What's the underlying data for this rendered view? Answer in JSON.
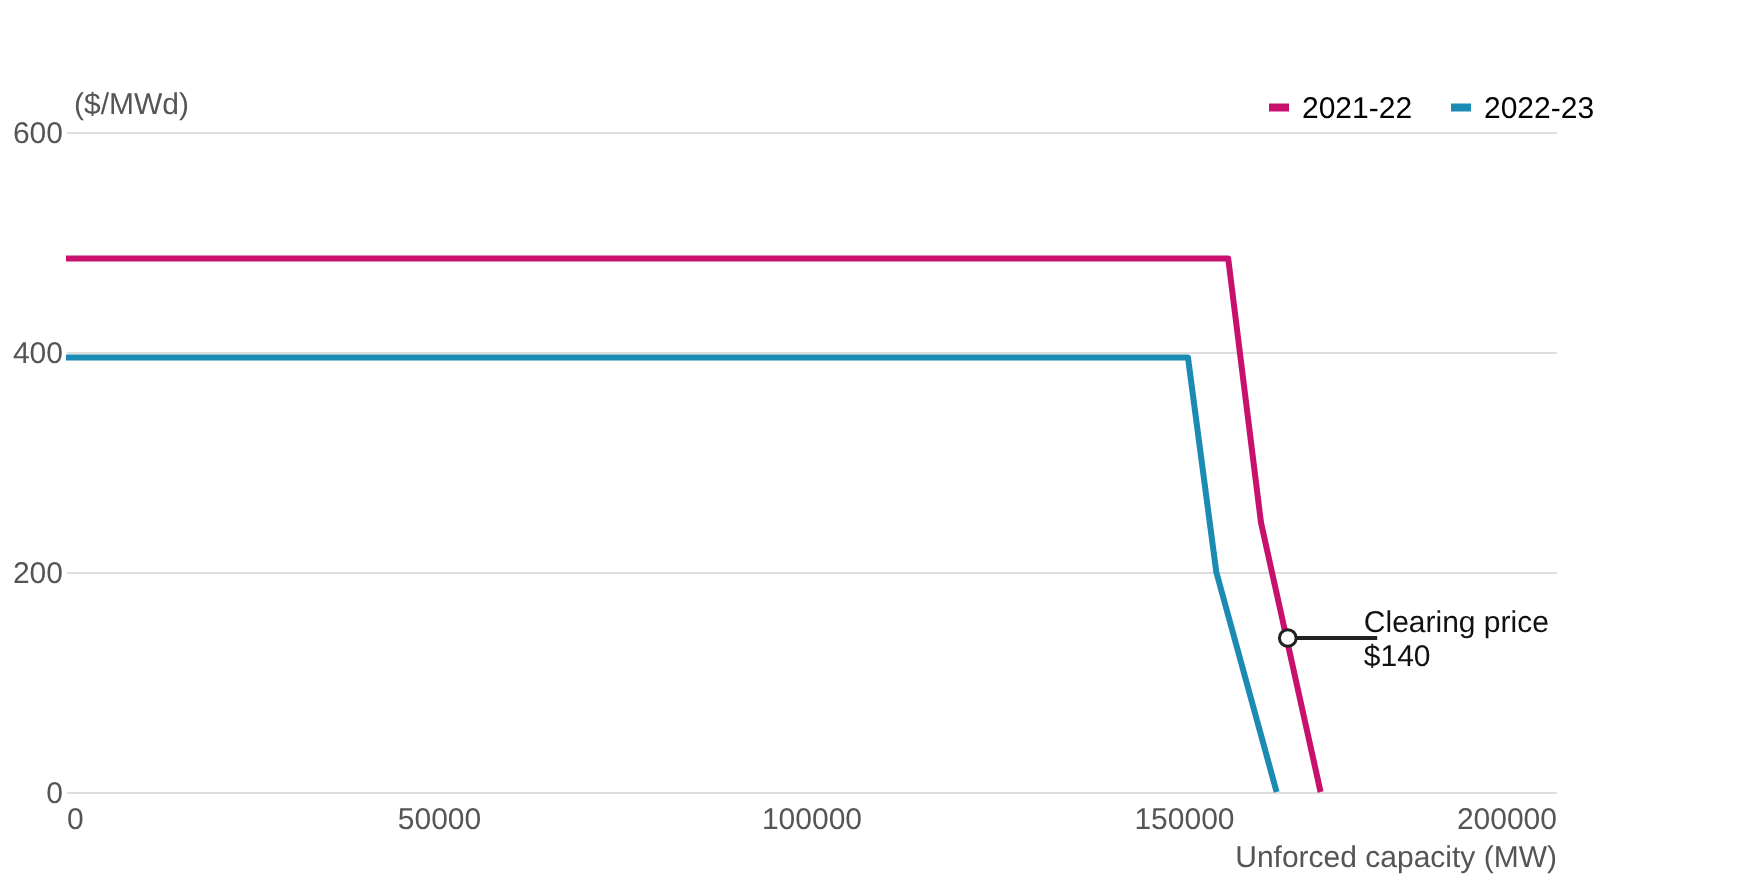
{
  "chart_data": {
    "type": "line",
    "ylabel": "($/MWd)",
    "xlabel": "Unforced capacity (MW)",
    "series": [
      {
        "name": "2021-22",
        "color": "#c8106e",
        "x": [
          0,
          156000,
          160400,
          168400
        ],
        "values": [
          485,
          485,
          245,
          0
        ]
      },
      {
        "name": "2022-23",
        "color": "#1b8bb4",
        "x": [
          0,
          150600,
          154400,
          162500
        ],
        "values": [
          395,
          395,
          200,
          0
        ]
      }
    ],
    "xlim": [
      0,
      200000
    ],
    "xticks": [
      0,
      50000,
      100000,
      150000,
      200000
    ],
    "ylim": [
      0,
      600
    ],
    "yticks": [
      0,
      200,
      400,
      600
    ],
    "grid": "y",
    "legend": "top right",
    "marker": "none",
    "line_style": "solid",
    "annotations": [
      {
        "text": "Clearing price\n$140",
        "x": 164000,
        "y": 140
      }
    ]
  }
}
